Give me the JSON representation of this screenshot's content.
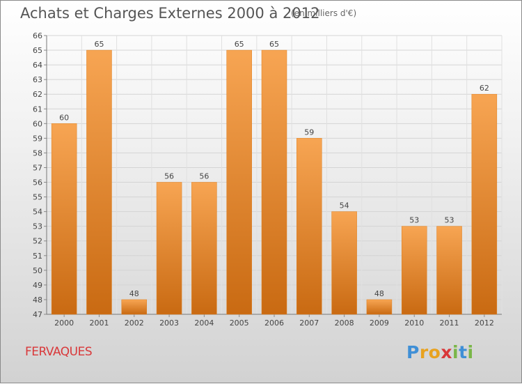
{
  "header": {
    "title": "Achats et Charges Externes 2000 à 2012",
    "subtitle": "(en milliers d'€)"
  },
  "footer": {
    "town": "FERVAQUES",
    "logo_letters": [
      "P",
      "r",
      "o",
      "x",
      "i",
      "t",
      "i"
    ],
    "logo_colors": [
      "#3f8fd6",
      "#e8a21f",
      "#e8a21f",
      "#d9383a",
      "#7ab648",
      "#3f8fd6",
      "#7ab648"
    ]
  },
  "chart_data": {
    "type": "bar",
    "categories": [
      "2000",
      "2001",
      "2002",
      "2003",
      "2004",
      "2005",
      "2006",
      "2007",
      "2008",
      "2009",
      "2010",
      "2011",
      "2012"
    ],
    "values": [
      60,
      65,
      48,
      56,
      56,
      65,
      65,
      59,
      54,
      48,
      53,
      53,
      62
    ],
    "ylim": [
      47,
      66
    ],
    "yticks": [
      47,
      48,
      49,
      50,
      51,
      52,
      53,
      54,
      55,
      56,
      57,
      58,
      59,
      60,
      61,
      62,
      63,
      64,
      65,
      66
    ],
    "grid": true,
    "bar_color": "#f0922f",
    "data_labels": true
  }
}
